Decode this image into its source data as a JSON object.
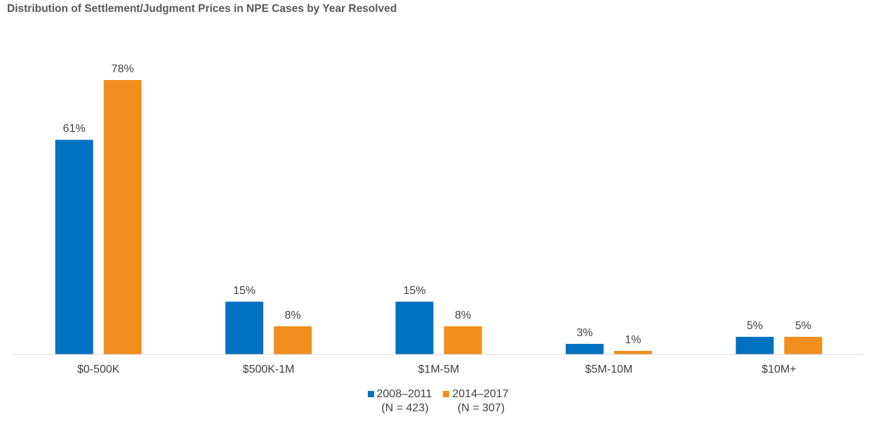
{
  "chart_data": {
    "type": "bar",
    "title": "Distribution of Settlement/Judgment Prices in NPE Cases by Year Resolved",
    "xlabel": "",
    "ylabel": "",
    "ylim": [
      0,
      80
    ],
    "grid": false,
    "legend_position": "bottom-center",
    "categories": [
      "$0-500K",
      "$500K-1M",
      "$1M-5M",
      "$5M-10M",
      "$10M+"
    ],
    "series": [
      {
        "name": "2008–2011",
        "sub": "(N = 423)",
        "color": "#0070C0",
        "values": [
          61,
          15,
          15,
          3,
          5
        ],
        "labels": [
          "61%",
          "15%",
          "15%",
          "3%",
          "5%"
        ]
      },
      {
        "name": "2014–2017",
        "sub": "(N = 307)",
        "color": "#F28E1E",
        "values": [
          78,
          8,
          8,
          1,
          5
        ],
        "labels": [
          "78%",
          "8%",
          "8%",
          "1%",
          "5%"
        ]
      }
    ]
  }
}
